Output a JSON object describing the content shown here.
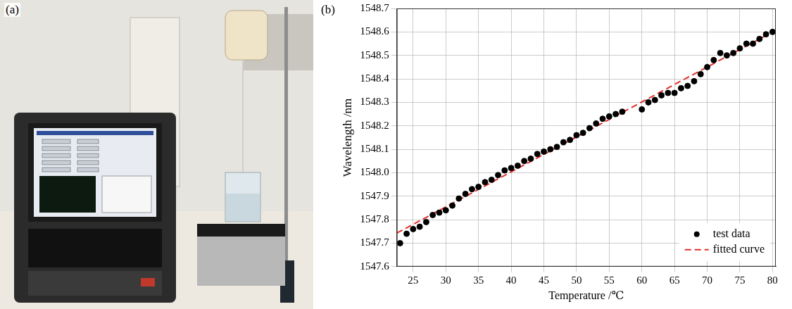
{
  "photo_label": "(a)",
  "chart_label": "(b)",
  "chart_data": {
    "type": "scatter",
    "x_label": "Temperature /℃",
    "y_label": "Wavelength /nm",
    "xlim": [
      22.5,
      80.5
    ],
    "xticks": [
      25,
      30,
      35,
      40,
      45,
      50,
      55,
      60,
      65,
      70,
      75,
      80
    ],
    "ylim": [
      1547.6,
      1548.7
    ],
    "yticks": [
      1547.6,
      1547.7,
      1547.8,
      1547.9,
      {
        "value": 1548,
        "label": "1548.0"
      },
      1548.1,
      1548.2,
      1548.3,
      1548.4,
      1548.5,
      1548.6,
      1548.7
    ],
    "grid": true,
    "legend": "lower right",
    "series": [
      {
        "name": "test data",
        "type": "scatter",
        "marker": "circle",
        "color": "#000000",
        "x": [
          23,
          24,
          25,
          26,
          27,
          28,
          29,
          30,
          31,
          32,
          33,
          34,
          35,
          36,
          37,
          38,
          39,
          40,
          41,
          42,
          43,
          44,
          45,
          46,
          47,
          48,
          49,
          50,
          51,
          52,
          53,
          54,
          55,
          56,
          57,
          60,
          61,
          62,
          63,
          64,
          65,
          66,
          67,
          68,
          69,
          70,
          71,
          72,
          73,
          74,
          75,
          76,
          77,
          78,
          79,
          80
        ],
        "values": [
          1547.7,
          1547.74,
          1547.76,
          1547.77,
          1547.79,
          1547.82,
          1547.83,
          1547.84,
          1547.86,
          1547.89,
          1547.91,
          1547.93,
          1547.94,
          1547.96,
          1547.97,
          1547.99,
          1548.01,
          1548.02,
          1548.03,
          1548.05,
          1548.06,
          1548.08,
          1548.09,
          1548.1,
          1548.11,
          1548.13,
          1548.14,
          1548.16,
          1548.17,
          1548.19,
          1548.21,
          1548.23,
          1548.24,
          1548.25,
          1548.26,
          1548.27,
          1548.3,
          1548.31,
          1548.33,
          1548.34,
          1548.34,
          1548.36,
          1548.37,
          1548.39,
          1548.42,
          1548.45,
          1548.48,
          1548.51,
          1548.5,
          1548.51,
          1548.53,
          1548.55,
          1548.55,
          1548.57,
          1548.59,
          1548.6
        ]
      },
      {
        "name": "fitted curve",
        "type": "line",
        "line_style": "dashed",
        "color": "#e0302c",
        "x": [
          22.5,
          80.5
        ],
        "values": [
          1547.743,
          1548.607
        ]
      }
    ]
  }
}
